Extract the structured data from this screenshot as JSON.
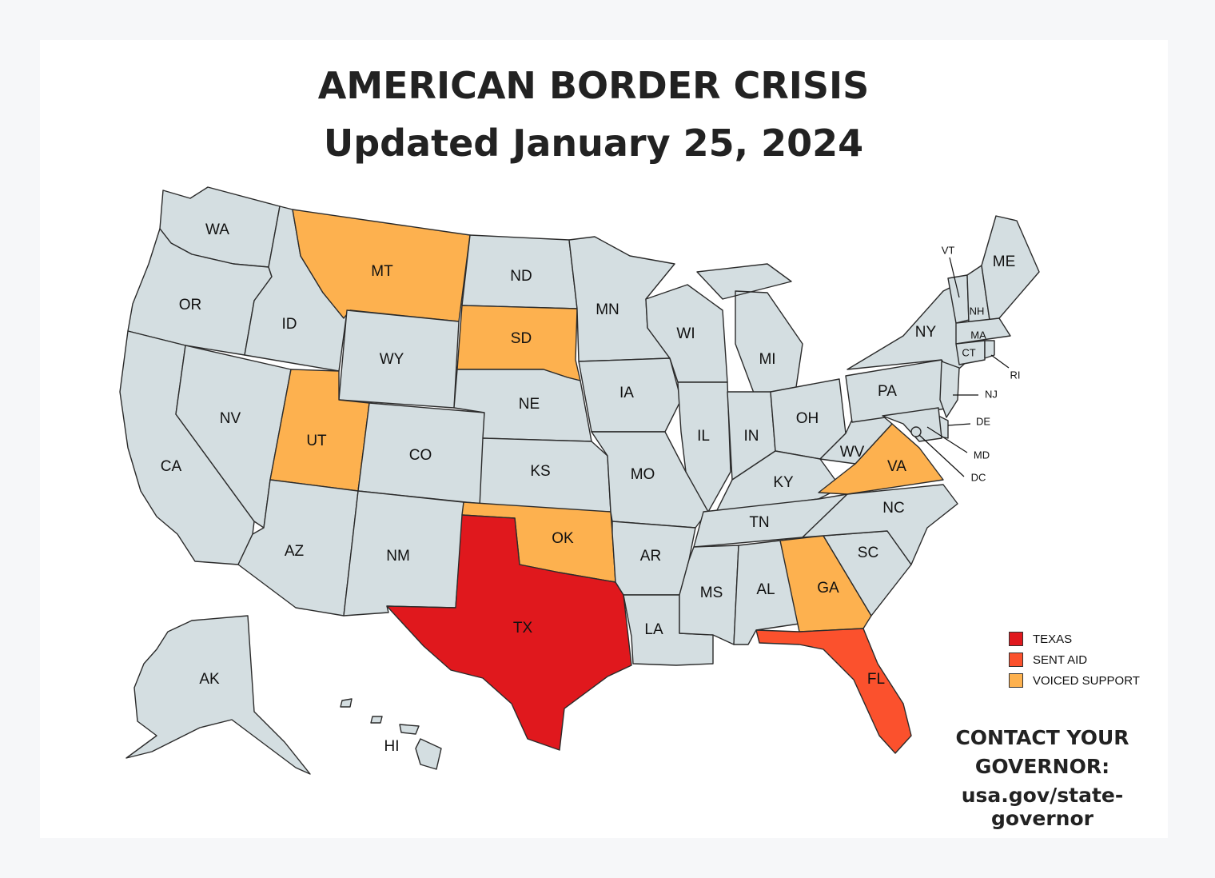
{
  "title_line1": "AMERICAN BORDER CRISIS",
  "title_line2": "Updated January 25, 2024",
  "status_colors": {
    "texas": "#e0181d",
    "sent_aid": "#fb512d",
    "voiced_support": "#fdb14f",
    "none": "#d4dee1"
  },
  "legend": [
    {
      "label": "TEXAS",
      "color": "#e0181d"
    },
    {
      "label": "SENT AID",
      "color": "#fb512d"
    },
    {
      "label": "VOICED SUPPORT",
      "color": "#fdb14f"
    }
  ],
  "states": [
    {
      "abbr": "WA",
      "status": "none"
    },
    {
      "abbr": "OR",
      "status": "none"
    },
    {
      "abbr": "CA",
      "status": "none"
    },
    {
      "abbr": "ID",
      "status": "none"
    },
    {
      "abbr": "NV",
      "status": "none"
    },
    {
      "abbr": "MT",
      "status": "voiced_support"
    },
    {
      "abbr": "WY",
      "status": "none"
    },
    {
      "abbr": "UT",
      "status": "voiced_support"
    },
    {
      "abbr": "AZ",
      "status": "none"
    },
    {
      "abbr": "CO",
      "status": "none"
    },
    {
      "abbr": "NM",
      "status": "none"
    },
    {
      "abbr": "ND",
      "status": "none"
    },
    {
      "abbr": "SD",
      "status": "voiced_support"
    },
    {
      "abbr": "NE",
      "status": "none"
    },
    {
      "abbr": "KS",
      "status": "none"
    },
    {
      "abbr": "OK",
      "status": "voiced_support"
    },
    {
      "abbr": "TX",
      "status": "texas"
    },
    {
      "abbr": "MN",
      "status": "none"
    },
    {
      "abbr": "IA",
      "status": "none"
    },
    {
      "abbr": "MO",
      "status": "none"
    },
    {
      "abbr": "AR",
      "status": "none"
    },
    {
      "abbr": "LA",
      "status": "none"
    },
    {
      "abbr": "WI",
      "status": "none"
    },
    {
      "abbr": "IL",
      "status": "none"
    },
    {
      "abbr": "MI",
      "status": "none"
    },
    {
      "abbr": "IN",
      "status": "none"
    },
    {
      "abbr": "OH",
      "status": "none"
    },
    {
      "abbr": "KY",
      "status": "none"
    },
    {
      "abbr": "TN",
      "status": "none"
    },
    {
      "abbr": "MS",
      "status": "none"
    },
    {
      "abbr": "AL",
      "status": "none"
    },
    {
      "abbr": "GA",
      "status": "voiced_support"
    },
    {
      "abbr": "FL",
      "status": "sent_aid"
    },
    {
      "abbr": "SC",
      "status": "none"
    },
    {
      "abbr": "NC",
      "status": "none"
    },
    {
      "abbr": "VA",
      "status": "voiced_support"
    },
    {
      "abbr": "WV",
      "status": "none"
    },
    {
      "abbr": "PA",
      "status": "none"
    },
    {
      "abbr": "NY",
      "status": "none"
    },
    {
      "abbr": "VT",
      "status": "none"
    },
    {
      "abbr": "NH",
      "status": "none"
    },
    {
      "abbr": "ME",
      "status": "none"
    },
    {
      "abbr": "MA",
      "status": "none"
    },
    {
      "abbr": "CT",
      "status": "none"
    },
    {
      "abbr": "RI",
      "status": "none"
    },
    {
      "abbr": "NJ",
      "status": "none"
    },
    {
      "abbr": "DE",
      "status": "none"
    },
    {
      "abbr": "MD",
      "status": "none"
    },
    {
      "abbr": "DC",
      "status": "none"
    },
    {
      "abbr": "AK",
      "status": "none"
    },
    {
      "abbr": "HI",
      "status": "none"
    }
  ],
  "contact": {
    "line1": "CONTACT YOUR",
    "line2": "GOVERNOR:",
    "line3": "usa.gov/state-governor"
  }
}
